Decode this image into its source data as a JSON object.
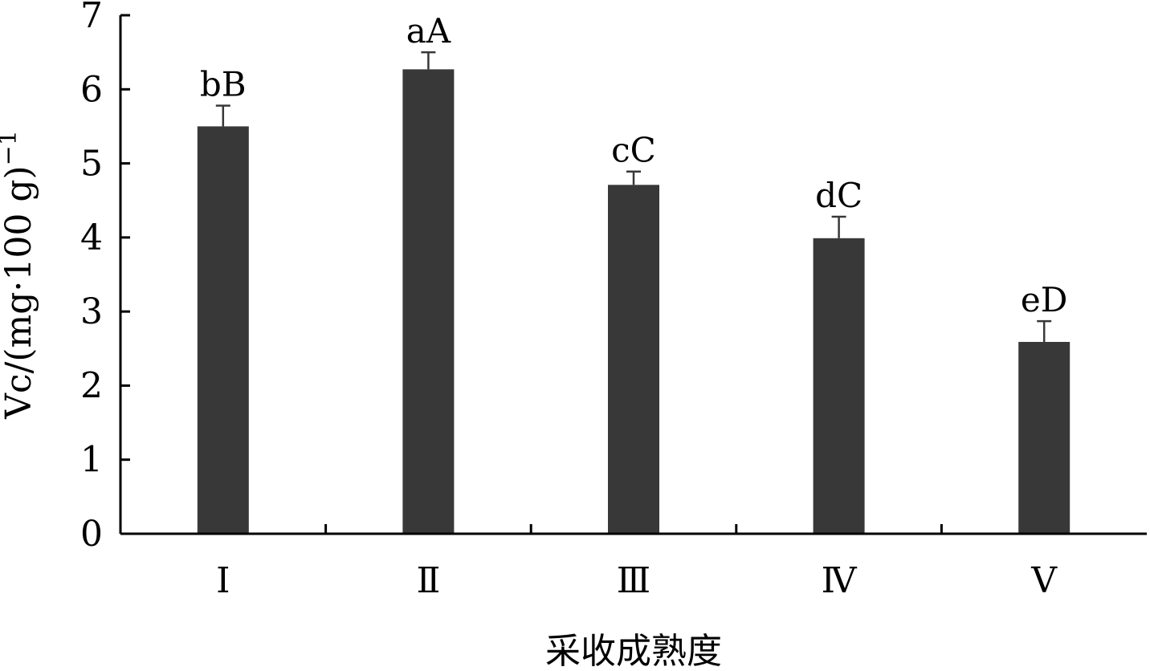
{
  "chart_data": {
    "type": "bar",
    "title": "",
    "xlabel": "采收成熟度",
    "ylabel": "Vc/(mg·100 g)",
    "ylabel_superscript": "−1",
    "ylim": [
      0,
      7
    ],
    "yticks": [
      "0",
      "1",
      "2",
      "3",
      "4",
      "5",
      "6",
      "7"
    ],
    "categories": [
      "Ⅰ",
      "Ⅱ",
      "Ⅲ",
      "Ⅳ",
      "Ⅴ"
    ],
    "values": [
      5.5,
      6.27,
      4.71,
      3.99,
      2.59
    ],
    "errors": [
      0.28,
      0.23,
      0.18,
      0.29,
      0.28
    ],
    "significance_labels": [
      "bB",
      "aA",
      "cC",
      "dC",
      "eD"
    ],
    "bar_color": "#383838",
    "grid": false,
    "legend": "none"
  }
}
